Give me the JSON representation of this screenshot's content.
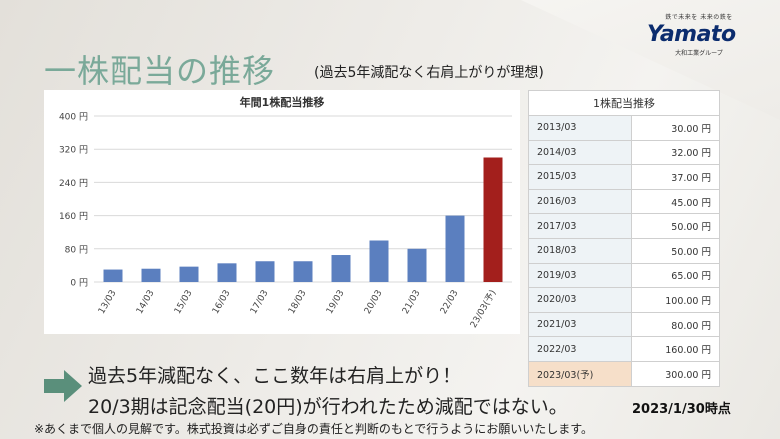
{
  "logo": {
    "tagline": "鉄で未来を 未来の鉄を",
    "word": "Yamato",
    "company": "大和工業グループ"
  },
  "title": "一株配当の推移",
  "subtitle": "(過去5年減配なく右肩上がりが理想)",
  "colors": {
    "bar": "#5b7fbf",
    "bar_highlight": "#a31f1c",
    "title": "#7aa999",
    "arrow": "#5a8f7b"
  },
  "chart_data": {
    "type": "bar",
    "title": "年間1株配当推移",
    "categories": [
      "13/03",
      "14/03",
      "15/03",
      "16/03",
      "17/03",
      "18/03",
      "19/03",
      "20/03",
      "21/03",
      "22/03",
      "23/03(予)"
    ],
    "values": [
      30,
      32,
      37,
      45,
      50,
      50,
      65,
      100,
      80,
      160,
      300
    ],
    "yticks": [
      "400 円",
      "320 円",
      "240 円",
      "160 円",
      "80 円",
      "0 円"
    ],
    "ylim": [
      0,
      400
    ],
    "highlight_index": 10
  },
  "table": {
    "header": "1株配当推移",
    "rows": [
      {
        "year": "2013/03",
        "value": "30.00 円"
      },
      {
        "year": "2014/03",
        "value": "32.00 円"
      },
      {
        "year": "2015/03",
        "value": "37.00 円"
      },
      {
        "year": "2016/03",
        "value": "45.00 円"
      },
      {
        "year": "2017/03",
        "value": "50.00 円"
      },
      {
        "year": "2018/03",
        "value": "50.00 円"
      },
      {
        "year": "2019/03",
        "value": "65.00 円"
      },
      {
        "year": "2020/03",
        "value": "100.00 円"
      },
      {
        "year": "2021/03",
        "value": "80.00 円"
      },
      {
        "year": "2022/03",
        "value": "160.00 円"
      },
      {
        "year": "2023/03(予)",
        "value": "300.00 円"
      }
    ]
  },
  "notes": {
    "line1": "過去5年減配なく、ここ数年は右肩上がり！",
    "line2": "20/3期は記念配当(20円)が行われたため減配ではない。",
    "date": "2023/1/30時点",
    "disclaimer": "※あくまで個人の見解です。株式投資は必ずご自身の責任と判断のもとで行うようにお願いいたします。"
  }
}
